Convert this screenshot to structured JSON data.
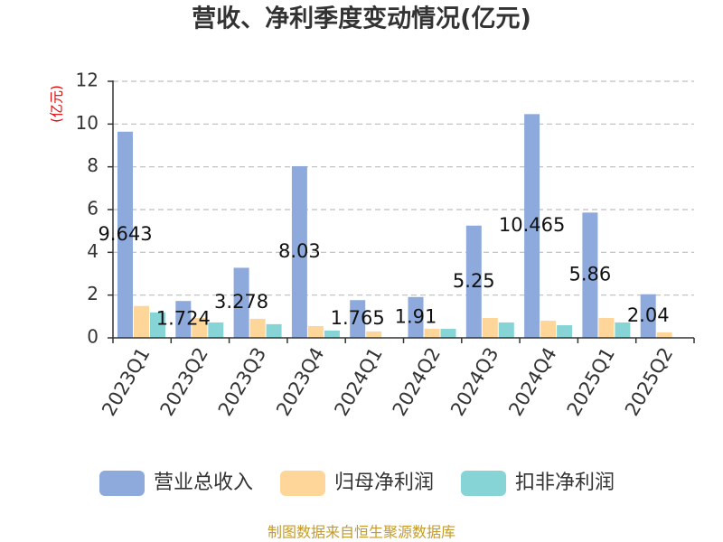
{
  "chart_data": {
    "type": "bar",
    "title": "营收、净利季度变动情况(亿元)",
    "xlabel": "",
    "ylabel": "(亿元)",
    "ylim": [
      0,
      12
    ],
    "yticks": [
      0,
      2,
      4,
      6,
      8,
      10,
      12
    ],
    "grid": true,
    "legend": "bottom",
    "categories": [
      "2023Q1",
      "2023Q2",
      "2023Q3",
      "2023Q4",
      "2024Q1",
      "2024Q2",
      "2024Q3",
      "2024Q4",
      "2025Q1",
      "2025Q2"
    ],
    "series": [
      {
        "name": "营业总收入",
        "color": "#8eaadc",
        "show_labels": true,
        "values": [
          9.643,
          1.724,
          3.278,
          8.03,
          1.765,
          1.91,
          5.25,
          10.465,
          5.86,
          2.04
        ]
      },
      {
        "name": "归母净利润",
        "color": "#ffd699",
        "show_labels": false,
        "values": [
          1.49,
          0.93,
          0.89,
          0.55,
          0.3,
          0.42,
          0.93,
          0.8,
          0.93,
          0.26
        ]
      },
      {
        "name": "扣非净利润",
        "color": "#86d4d6",
        "show_labels": false,
        "values": [
          1.19,
          0.72,
          0.64,
          0.34,
          0,
          0.42,
          0.72,
          0.59,
          0.72,
          0
        ]
      }
    ]
  },
  "footer": {
    "source": "制图数据来自恒生聚源数据库"
  }
}
